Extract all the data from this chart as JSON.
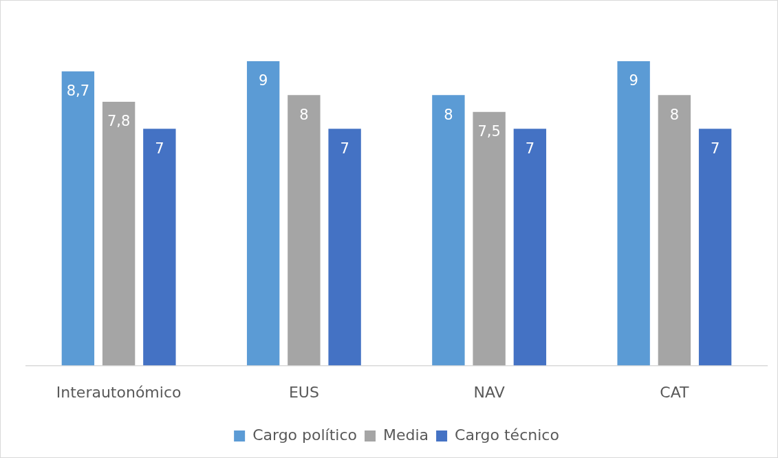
{
  "chart_data": {
    "type": "bar",
    "categories": [
      "Interautonómico",
      "EUS",
      "NAV",
      "CAT"
    ],
    "series": [
      {
        "name": "Cargo político",
        "color": "#5b9bd5",
        "values": [
          8.7,
          9,
          8,
          9
        ],
        "value_labels": [
          "8,7",
          "9",
          "8",
          "9"
        ]
      },
      {
        "name": "Media",
        "color": "#a5a5a5",
        "values": [
          7.8,
          8,
          7.5,
          8
        ],
        "value_labels": [
          "7,8",
          "8",
          "7,5",
          "8"
        ]
      },
      {
        "name": "Cargo técnico",
        "color": "#4472c4",
        "values": [
          7,
          7,
          7,
          7
        ],
        "value_labels": [
          "7",
          "7",
          "7",
          "7"
        ]
      }
    ],
    "grid": false,
    "legend": "bottom"
  }
}
